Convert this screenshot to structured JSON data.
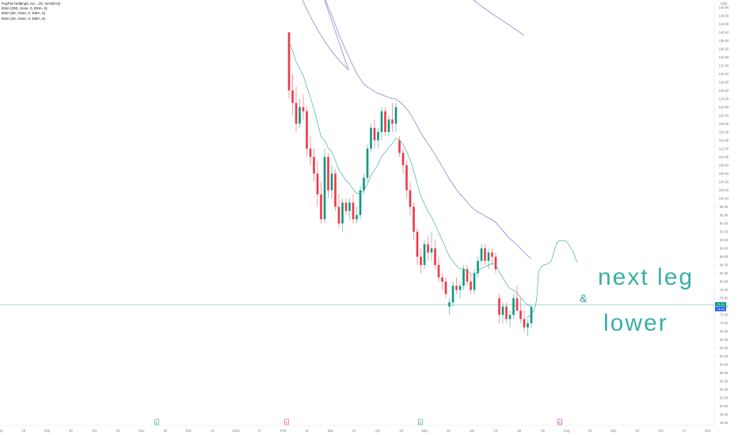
{
  "header": {
    "title": "PayPal Holdings, Inc., 1D, NASDAQ",
    "indicators": [
      "EMA (200, close, 0, EMA, 5)",
      "EMA (50, close, 0, EMA, 5)",
      "EMA (20, close, 0, EMA, 5)"
    ]
  },
  "axis": {
    "currency": "USD",
    "price_labels": [
      "146.00",
      "144.00",
      "142.00",
      "140.00",
      "138.00",
      "136.00",
      "134.00",
      "132.00",
      "130.00",
      "128.00",
      "126.00",
      "124.00",
      "122.00",
      "120.00",
      "118.00",
      "116.00",
      "114.00",
      "112.00",
      "110.00",
      "108.00",
      "106.00",
      "104.00",
      "102.00",
      "100.00",
      "98.00",
      "96.00",
      "94.00",
      "92.00",
      "90.00",
      "88.00",
      "86.00",
      "84.00",
      "82.00",
      "80.00",
      "78.00",
      "76.00",
      "74.00",
      "72.00",
      "70.00",
      "68.00",
      "66.00",
      "64.00",
      "62.00",
      "60.00",
      "58.00",
      "56.00",
      "54.00",
      "52.00",
      "50.00",
      "48.00",
      "46.00"
    ],
    "time_labels": [
      "Sep",
      "16",
      "Sep",
      "20",
      "Oct",
      "18",
      "Nov",
      "15",
      "Dec",
      "13",
      "2022",
      "17",
      "Feb",
      "14",
      "Mar",
      "14",
      "Apr",
      "18",
      "May",
      "16",
      "Jun",
      "13",
      "Jul",
      "18",
      "Aug",
      "15",
      "Sep",
      "19",
      "Oct",
      "17",
      "Nov"
    ],
    "current_price_label": "74.40",
    "current_price_label2": "74.40"
  },
  "annotation": {
    "text_line1": "next leg",
    "text_line2": "lower",
    "text_prefix": "&"
  },
  "chart_data": {
    "type": "candlestick",
    "title": "PayPal Holdings, Inc., 1D, NASDAQ",
    "y_range": [
      45,
      147
    ],
    "current_price": 74.4,
    "ohlc": [
      [
        140,
        140,
        124,
        126
      ],
      [
        126,
        130,
        120,
        123
      ],
      [
        123,
        127,
        116,
        118
      ],
      [
        118,
        124,
        117,
        122
      ],
      [
        122,
        125,
        119,
        121
      ],
      [
        121,
        122,
        110,
        112
      ],
      [
        112,
        115,
        108,
        110
      ],
      [
        110,
        112,
        104,
        106
      ],
      [
        106,
        109,
        98,
        101
      ],
      [
        101,
        104,
        94,
        95
      ],
      [
        95,
        112,
        94,
        110
      ],
      [
        110,
        111,
        100,
        102
      ],
      [
        102,
        108,
        100,
        106
      ],
      [
        106,
        107,
        97,
        98
      ],
      [
        98,
        101,
        93,
        94
      ],
      [
        94,
        100,
        92,
        99
      ],
      [
        99,
        100,
        96,
        97
      ],
      [
        97,
        100,
        95,
        99
      ],
      [
        99,
        101,
        94,
        95
      ],
      [
        95,
        98,
        94,
        96
      ],
      [
        96,
        103,
        95,
        102
      ],
      [
        102,
        106,
        101,
        105
      ],
      [
        105,
        113,
        104,
        112
      ],
      [
        112,
        118,
        111,
        117
      ],
      [
        117,
        119,
        112,
        114
      ],
      [
        114,
        117,
        112,
        116
      ],
      [
        116,
        122,
        114,
        121
      ],
      [
        121,
        122,
        115,
        116
      ],
      [
        116,
        120,
        115,
        119
      ],
      [
        119,
        123,
        116,
        118
      ],
      [
        118,
        123,
        116,
        122
      ],
      [
        114,
        115,
        110,
        111
      ],
      [
        111,
        112,
        106,
        108
      ],
      [
        108,
        109,
        100,
        102
      ],
      [
        102,
        104,
        96,
        98
      ],
      [
        98,
        99,
        90,
        92
      ],
      [
        92,
        93,
        84,
        86
      ],
      [
        86,
        88,
        82,
        84
      ],
      [
        84,
        90,
        83,
        89
      ],
      [
        89,
        91,
        85,
        87
      ],
      [
        87,
        92,
        85,
        88
      ],
      [
        88,
        90,
        83,
        84
      ],
      [
        84,
        86,
        80,
        81
      ],
      [
        81,
        82,
        78,
        80
      ],
      [
        80,
        81,
        76,
        77
      ],
      [
        74,
        76,
        72,
        75
      ],
      [
        75,
        80,
        74,
        79
      ],
      [
        79,
        81,
        77,
        78
      ],
      [
        78,
        80,
        76,
        79
      ],
      [
        79,
        84,
        78,
        83
      ],
      [
        83,
        84,
        79,
        80
      ],
      [
        80,
        82,
        77,
        78
      ],
      [
        78,
        83,
        77,
        82
      ],
      [
        82,
        86,
        81,
        85
      ],
      [
        85,
        89,
        84,
        88
      ],
      [
        88,
        89,
        84,
        85
      ],
      [
        85,
        88,
        83,
        87
      ],
      [
        87,
        88,
        84,
        86
      ],
      [
        86,
        87,
        82,
        83
      ],
      [
        76,
        77,
        70,
        72
      ],
      [
        72,
        75,
        70,
        74
      ],
      [
        74,
        75,
        70,
        71
      ],
      [
        71,
        73,
        69,
        72
      ],
      [
        72,
        77,
        71,
        76
      ],
      [
        76,
        79,
        73,
        73
      ],
      [
        73,
        76,
        70,
        71
      ],
      [
        71,
        73,
        68,
        69
      ],
      [
        69,
        71,
        67,
        70
      ],
      [
        70,
        74,
        69,
        74
      ]
    ]
  }
}
